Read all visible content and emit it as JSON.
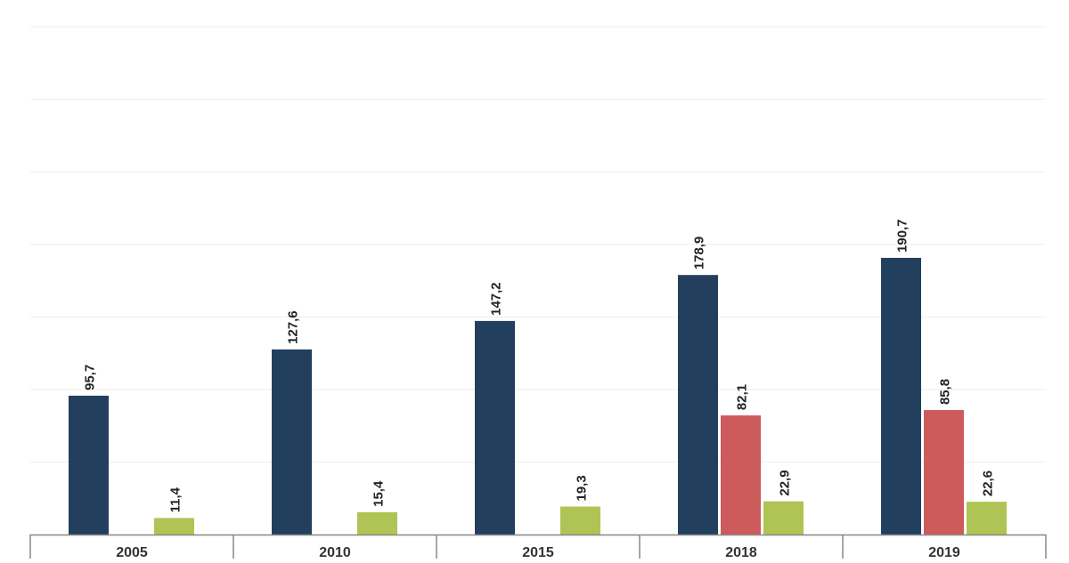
{
  "chart_data": {
    "type": "bar",
    "title": "",
    "xlabel": "",
    "ylabel": "",
    "ylim": [
      0,
      350
    ],
    "grid": true,
    "legend": "none",
    "categories": [
      "2005",
      "2010",
      "2015",
      "2018",
      "2019"
    ],
    "series": [
      {
        "color": "#233f5e",
        "values": [
          95.7,
          127.6,
          147.2,
          178.9,
          190.7
        ],
        "labels": [
          "95,7",
          "127,6",
          "147,2",
          "178,9",
          "190,7"
        ]
      },
      {
        "color": "#cd5b5b",
        "values": [
          null,
          null,
          null,
          82.1,
          85.8
        ],
        "labels": [
          "",
          "",
          "",
          "82,1",
          "85,8"
        ]
      },
      {
        "color": "#afc455",
        "values": [
          11.4,
          15.4,
          19.3,
          22.9,
          22.6
        ],
        "labels": [
          "11,4",
          "15,4",
          "19,3",
          "22,9",
          "22,6"
        ]
      }
    ]
  },
  "colors": {
    "gridline": "#eeeeee",
    "axis": "#888888",
    "label_text": "#222222",
    "tick_text": "#333333"
  }
}
